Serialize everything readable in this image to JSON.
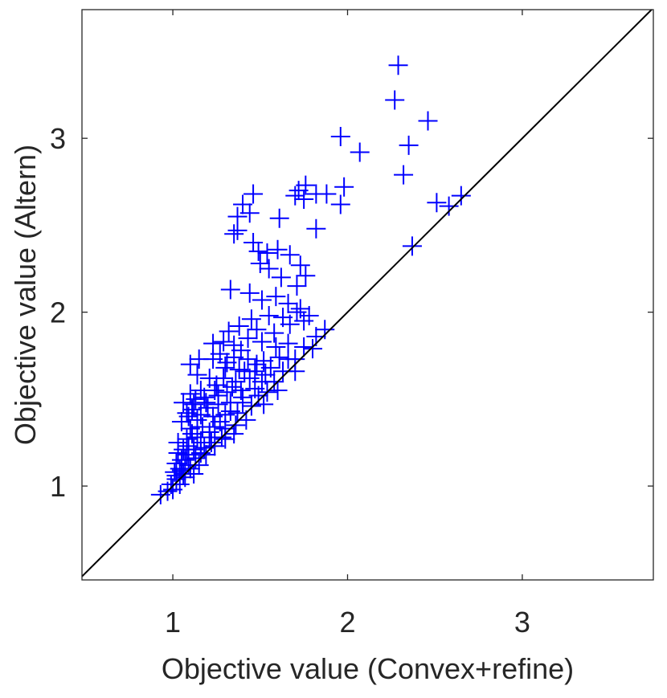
{
  "chart_data": {
    "type": "scatter",
    "title": "",
    "xlabel": "Objective value (Convex+refine)",
    "ylabel": "Objective value (Altern)",
    "xlim": [
      0.48,
      3.75
    ],
    "ylim": [
      0.46,
      3.74
    ],
    "xticks": [
      1,
      2,
      3
    ],
    "yticks": [
      1,
      2,
      3
    ],
    "xtick_labels": [
      "1",
      "2",
      "3"
    ],
    "ytick_labels": [
      "1",
      "2",
      "3"
    ],
    "grid": false,
    "marker": "plus",
    "marker_color": "#0000ff",
    "reference_line": {
      "type": "y=x",
      "color": "#000000"
    },
    "series": [
      {
        "points": [
          [
            2.29,
            3.42
          ],
          [
            2.27,
            3.22
          ],
          [
            2.46,
            3.1
          ],
          [
            2.35,
            2.96
          ],
          [
            2.32,
            2.79
          ],
          [
            1.96,
            3.01
          ],
          [
            2.07,
            2.92
          ],
          [
            1.98,
            2.72
          ],
          [
            1.96,
            2.62
          ],
          [
            2.51,
            2.63
          ],
          [
            2.65,
            2.67
          ],
          [
            2.58,
            2.61
          ],
          [
            2.37,
            2.38
          ],
          [
            1.76,
            2.73
          ],
          [
            1.72,
            2.7
          ],
          [
            1.7,
            2.67
          ],
          [
            1.75,
            2.65
          ],
          [
            1.82,
            2.68
          ],
          [
            1.88,
            2.68
          ],
          [
            1.46,
            2.68
          ],
          [
            1.4,
            2.62
          ],
          [
            1.44,
            2.57
          ],
          [
            1.37,
            2.55
          ],
          [
            1.61,
            2.54
          ],
          [
            1.37,
            2.47
          ],
          [
            1.35,
            2.45
          ],
          [
            1.82,
            2.48
          ],
          [
            1.46,
            2.4
          ],
          [
            1.49,
            2.35
          ],
          [
            1.54,
            2.34
          ],
          [
            1.6,
            2.36
          ],
          [
            1.67,
            2.33
          ],
          [
            1.73,
            2.27
          ],
          [
            1.76,
            2.21
          ],
          [
            1.5,
            2.28
          ],
          [
            1.55,
            2.25
          ],
          [
            1.62,
            2.2
          ],
          [
            1.71,
            2.15
          ],
          [
            1.33,
            2.13
          ],
          [
            1.44,
            2.11
          ],
          [
            1.51,
            2.07
          ],
          [
            1.59,
            2.09
          ],
          [
            1.66,
            2.05
          ],
          [
            1.73,
            2.02
          ],
          [
            1.78,
            1.98
          ],
          [
            1.71,
            2.0
          ],
          [
            1.63,
            1.97
          ],
          [
            1.55,
            1.98
          ],
          [
            1.45,
            1.96
          ],
          [
            1.38,
            1.92
          ],
          [
            1.32,
            1.89
          ],
          [
            1.48,
            1.9
          ],
          [
            1.58,
            1.88
          ],
          [
            1.67,
            1.93
          ],
          [
            1.75,
            1.95
          ],
          [
            1.87,
            1.9
          ],
          [
            1.82,
            1.86
          ],
          [
            1.75,
            1.8
          ],
          [
            1.66,
            1.82
          ],
          [
            1.59,
            1.8
          ],
          [
            1.51,
            1.83
          ],
          [
            1.43,
            1.85
          ],
          [
            1.35,
            1.81
          ],
          [
            1.29,
            1.83
          ],
          [
            1.23,
            1.82
          ],
          [
            1.27,
            1.76
          ],
          [
            1.35,
            1.74
          ],
          [
            1.43,
            1.73
          ],
          [
            1.52,
            1.72
          ],
          [
            1.61,
            1.74
          ],
          [
            1.7,
            1.73
          ],
          [
            1.56,
            1.68
          ],
          [
            1.47,
            1.66
          ],
          [
            1.38,
            1.67
          ],
          [
            1.3,
            1.68
          ],
          [
            1.23,
            1.73
          ],
          [
            1.15,
            1.73
          ],
          [
            1.1,
            1.7
          ],
          [
            1.14,
            1.64
          ],
          [
            1.21,
            1.62
          ],
          [
            1.29,
            1.62
          ],
          [
            1.36,
            1.6
          ],
          [
            1.44,
            1.62
          ],
          [
            1.51,
            1.6
          ],
          [
            1.58,
            1.6
          ],
          [
            1.47,
            1.56
          ],
          [
            1.39,
            1.55
          ],
          [
            1.31,
            1.54
          ],
          [
            1.24,
            1.55
          ],
          [
            1.16,
            1.55
          ],
          [
            1.1,
            1.53
          ],
          [
            1.06,
            1.48
          ],
          [
            1.12,
            1.47
          ],
          [
            1.19,
            1.48
          ],
          [
            1.26,
            1.47
          ],
          [
            1.33,
            1.48
          ],
          [
            1.4,
            1.48
          ],
          [
            1.45,
            1.46
          ],
          [
            1.37,
            1.42
          ],
          [
            1.3,
            1.41
          ],
          [
            1.23,
            1.4
          ],
          [
            1.16,
            1.41
          ],
          [
            1.09,
            1.4
          ],
          [
            1.05,
            1.37
          ],
          [
            1.1,
            1.33
          ],
          [
            1.17,
            1.34
          ],
          [
            1.24,
            1.34
          ],
          [
            1.3,
            1.33
          ],
          [
            1.36,
            1.35
          ],
          [
            1.28,
            1.28
          ],
          [
            1.21,
            1.28
          ],
          [
            1.14,
            1.28
          ],
          [
            1.08,
            1.27
          ],
          [
            1.03,
            1.25
          ],
          [
            1.06,
            1.21
          ],
          [
            1.12,
            1.21
          ],
          [
            1.18,
            1.22
          ],
          [
            1.24,
            1.23
          ],
          [
            1.19,
            1.18
          ],
          [
            1.13,
            1.16
          ],
          [
            1.07,
            1.15
          ],
          [
            1.02,
            1.13
          ],
          [
            1.05,
            1.09
          ],
          [
            1.1,
            1.1
          ],
          [
            1.15,
            1.12
          ],
          [
            1.12,
            1.07
          ],
          [
            1.07,
            1.05
          ],
          [
            1.02,
            1.04
          ],
          [
            0.99,
            1.01
          ],
          [
            1.04,
            1.01
          ],
          [
            0.97,
            0.97
          ],
          [
            1.0,
            0.98
          ],
          [
            0.93,
            0.95
          ],
          [
            1.06,
            1.07
          ],
          [
            1.01,
            1.08
          ],
          [
            1.08,
            1.18
          ],
          [
            1.03,
            1.19
          ],
          [
            1.09,
            1.23
          ],
          [
            1.16,
            1.25
          ],
          [
            1.21,
            1.31
          ],
          [
            1.27,
            1.37
          ],
          [
            1.33,
            1.43
          ],
          [
            1.4,
            1.51
          ],
          [
            1.49,
            1.52
          ],
          [
            1.54,
            1.54
          ],
          [
            1.53,
            1.64
          ],
          [
            1.63,
            1.66
          ],
          [
            1.66,
            1.73
          ],
          [
            1.2,
            1.45
          ],
          [
            1.14,
            1.38
          ],
          [
            1.11,
            1.44
          ],
          [
            1.18,
            1.51
          ],
          [
            1.25,
            1.58
          ],
          [
            1.31,
            1.71
          ],
          [
            1.39,
            1.78
          ],
          [
            1.26,
            1.52
          ],
          [
            1.34,
            1.57
          ],
          [
            1.41,
            1.66
          ],
          [
            1.48,
            1.7
          ],
          [
            1.3,
            1.27
          ],
          [
            1.35,
            1.3
          ],
          [
            1.42,
            1.38
          ],
          [
            1.52,
            1.47
          ],
          [
            1.6,
            1.55
          ],
          [
            1.7,
            1.66
          ],
          [
            1.8,
            1.79
          ],
          [
            1.04,
            1.1
          ],
          [
            1.09,
            1.12
          ],
          [
            1.16,
            1.19
          ],
          [
            1.22,
            1.25
          ],
          [
            1.02,
            1.06
          ],
          [
            1.05,
            1.15
          ],
          [
            1.11,
            1.3
          ],
          [
            1.08,
            1.42
          ],
          [
            1.13,
            1.5
          ]
        ]
      }
    ]
  }
}
